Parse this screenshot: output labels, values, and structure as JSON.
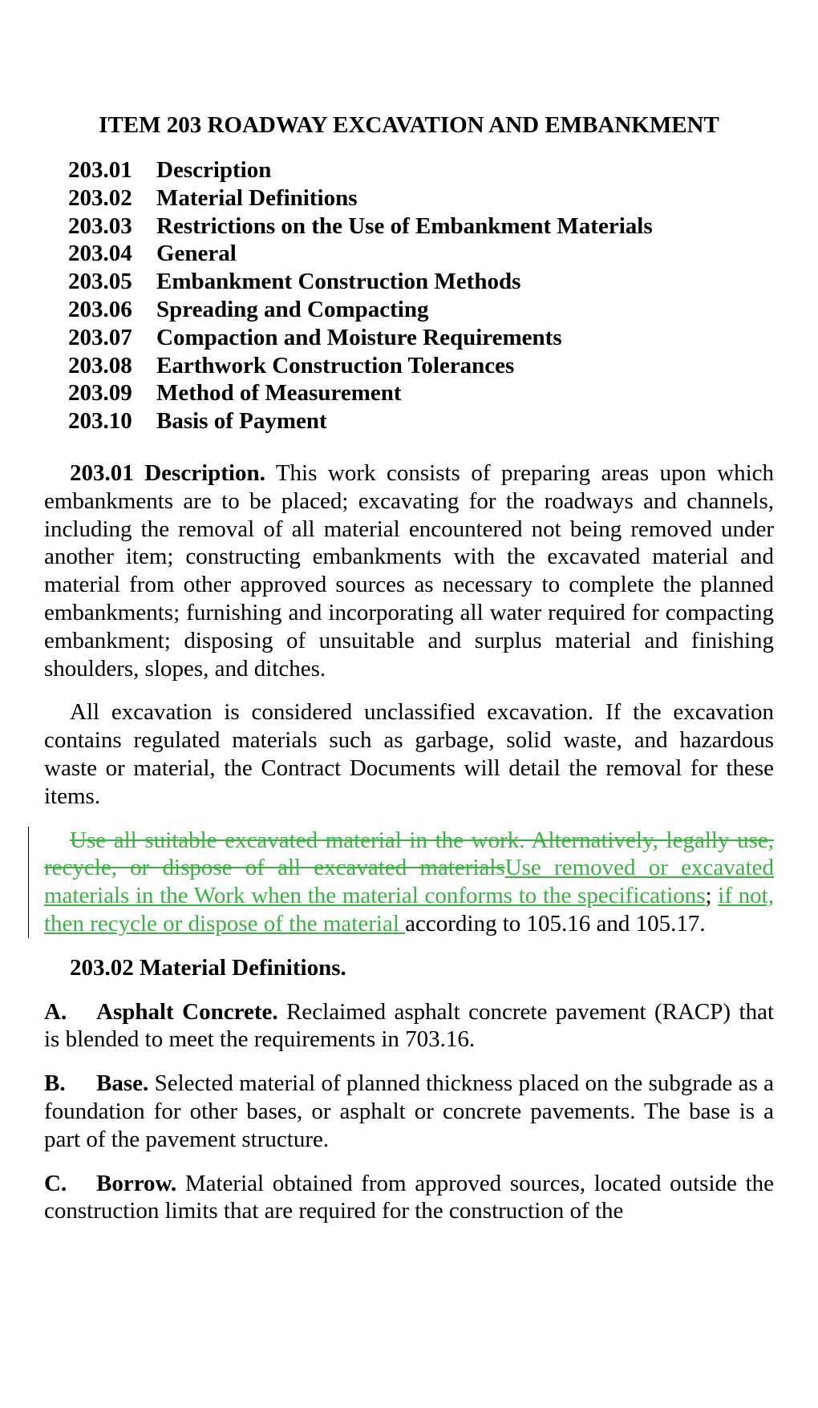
{
  "title": "ITEM 203  ROADWAY EXCAVATION AND EMBANKMENT",
  "toc": [
    {
      "num": "203.01",
      "label": "Description"
    },
    {
      "num": "203.02",
      "label": "Material Definitions"
    },
    {
      "num": "203.03",
      "label": "Restrictions on the Use of Embankment Materials"
    },
    {
      "num": "203.04",
      "label": "General"
    },
    {
      "num": "203.05",
      "label": "Embankment Construction Methods"
    },
    {
      "num": "203.06",
      "label": "Spreading and Compacting"
    },
    {
      "num": "203.07",
      "label": "Compaction and Moisture Requirements"
    },
    {
      "num": "203.08",
      "label": "Earthwork Construction Tolerances"
    },
    {
      "num": "203.09",
      "label": "Method of Measurement"
    },
    {
      "num": "203.10",
      "label": "Basis of Payment"
    }
  ],
  "p1": {
    "head": "203.01  Description.",
    "body": "  This work consists of preparing areas upon which embankments are to be placed; excavating for the roadways and channels, including the removal of all material encountered not being removed under another item; constructing embankments with the excavated material and material from other approved sources as necessary to complete the planned embankments; furnishing and incorporating all water required for compacting embankment; disposing of unsuitable and surplus material and finishing shoulders, slopes, and ditches."
  },
  "p2": "All excavation is considered unclassified excavation.  If the excavation contains regulated materials such as garbage, solid waste, and hazardous waste or material, the Contract Documents will detail the removal for these items.",
  "p3": {
    "strike": "Use all suitable excavated material in the work.  Alternatively, legally use, recycle, or dispose of all excavated materials",
    "ins1": "Use removed or excavated materials in the Work when the material conforms to the specifications",
    "mid": "; ",
    "ins2": "if not, then recycle or dispose of the material ",
    "tail": " according to 105.16 and 105.17."
  },
  "p4head": "203.02  Material Definitions.",
  "defA": {
    "letter": "A.",
    "term": "Asphalt Concrete.",
    "body": "  Reclaimed asphalt concrete pavement (RACP) that is blended to meet the requirements in 703.16."
  },
  "defB": {
    "letter": "B.",
    "term": "Base.",
    "body": "  Selected material of planned thickness placed on the subgrade as a foundation for other bases, or asphalt or concrete pavements.  The base is a part of the pavement structure."
  },
  "defC": {
    "letter": "C.",
    "term": "Borrow.",
    "body": "  Material obtained from approved sources, located outside the construction limits that are required for the construction of the"
  }
}
